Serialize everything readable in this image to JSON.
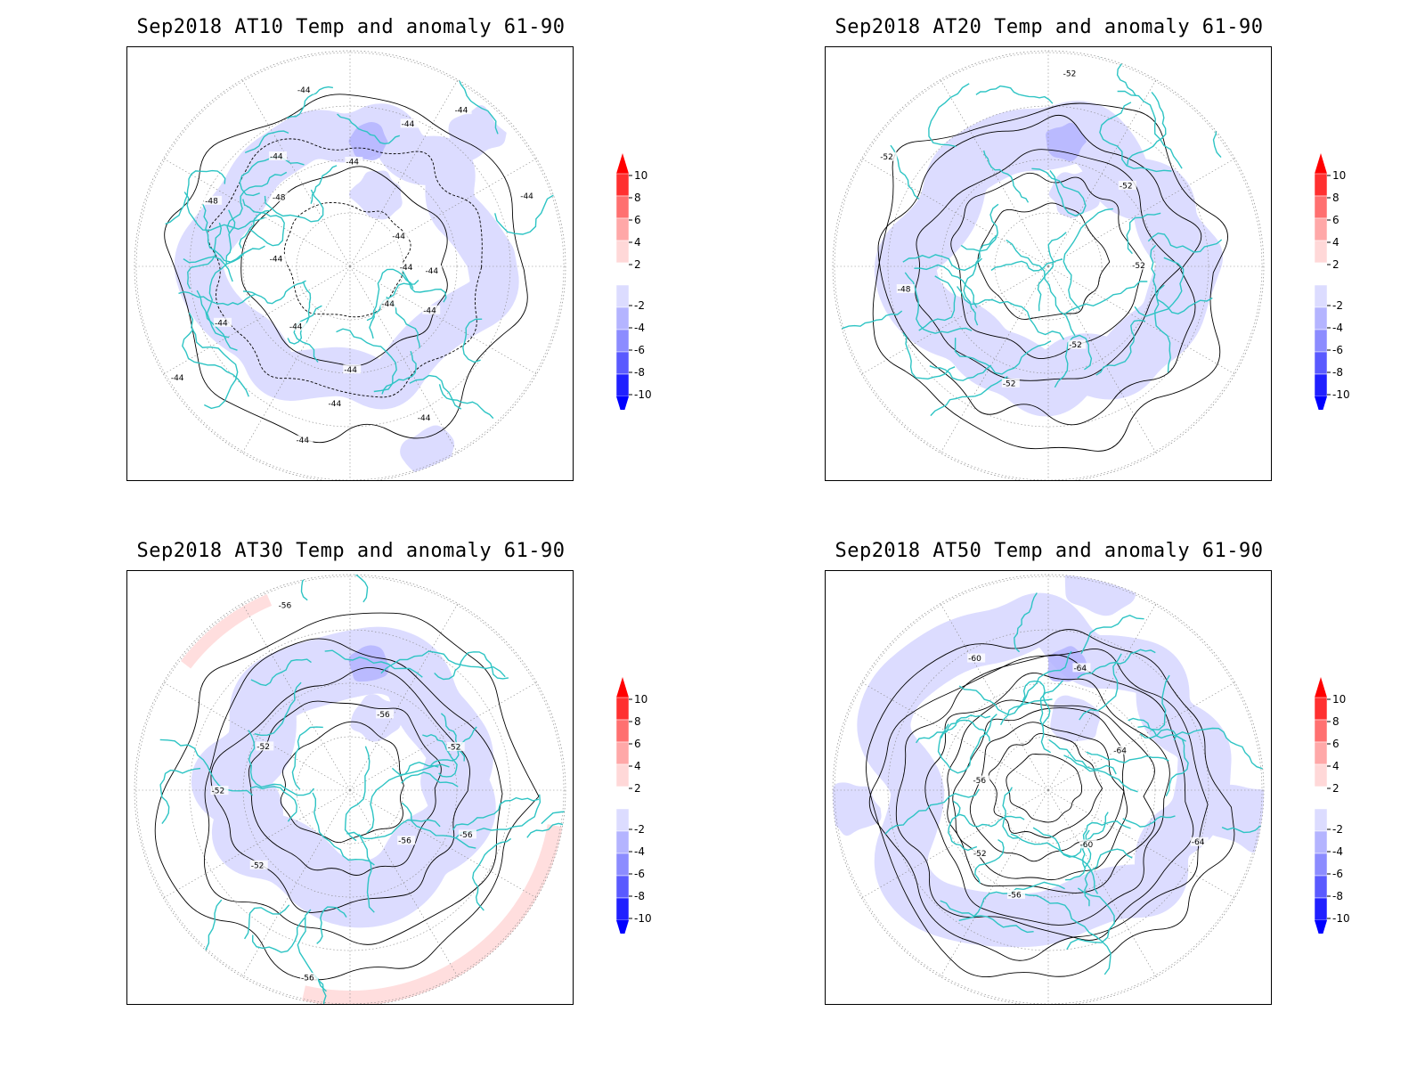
{
  "panels": [
    {
      "id": "AT10",
      "title": "Sep2018 AT10 Temp and anomaly 61-90",
      "contour_labels": [
        "-44",
        "-44",
        "-44",
        "-44",
        "-44",
        "-44",
        "-44",
        "-44",
        "-44",
        "-44",
        "-44",
        "-48",
        "-48",
        "-44",
        "-44",
        "-44",
        "-44",
        "-44",
        "-44",
        "-44",
        "-44"
      ],
      "warm_fringe": false
    },
    {
      "id": "AT20",
      "title": "Sep2018 AT20 Temp and anomaly 61-90",
      "contour_labels": [
        "-52",
        "-52",
        "-52",
        "-48",
        "-52",
        "-52",
        "-52"
      ],
      "warm_fringe": false
    },
    {
      "id": "AT30",
      "title": "Sep2018 AT30 Temp and anomaly 61-90",
      "contour_labels": [
        "-56",
        "-56",
        "-56",
        "-52",
        "-52",
        "-52",
        "-56",
        "-56",
        "-52"
      ],
      "warm_fringe": true
    },
    {
      "id": "AT50",
      "title": "Sep2018 AT50 Temp and anomaly 61-90",
      "contour_labels": [
        "-64",
        "-60",
        "-56",
        "-52",
        "-56",
        "-60",
        "-64",
        "-64"
      ],
      "warm_fringe": false
    }
  ],
  "colorbar": {
    "labels": [
      "10",
      "8",
      "6",
      "4",
      "2",
      "-2",
      "-4",
      "-6",
      "-8",
      "-10"
    ],
    "colors": [
      "#ff3030",
      "#ff7070",
      "#ffa8a8",
      "#ffd8d8",
      "#ffffff",
      "#dcdcff",
      "#b4b4ff",
      "#8c8cff",
      "#5a5aff",
      "#2020ff"
    ],
    "top_arrow_color": "#ff0000",
    "bottom_arrow_color": "#0000ff"
  },
  "colors": {
    "anomaly_cool": "#dcdcff",
    "anomaly_cooler": "#b4b4ff",
    "anomaly_warm": "#ffdede",
    "coastline": "#2ec4c4",
    "contour": "#000000",
    "grid": "#888888"
  }
}
